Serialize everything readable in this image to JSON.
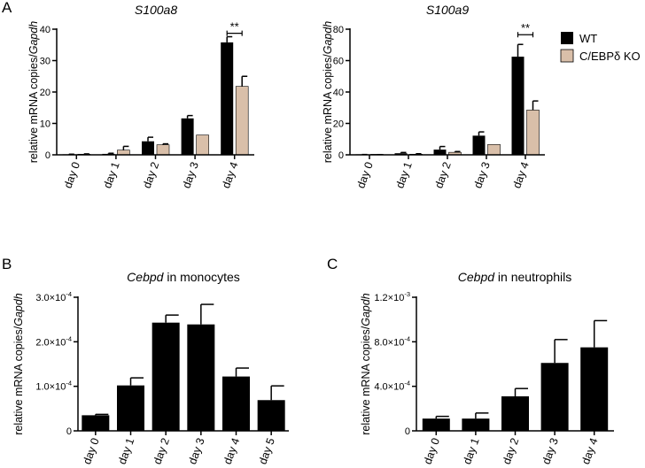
{
  "panel_letters": {
    "A": "A",
    "B": "B",
    "C": "C"
  },
  "colors": {
    "wt": "#000000",
    "ko": "#d9bfa9",
    "axis": "#000000"
  },
  "legend": {
    "wt": "WT",
    "ko": "C/EBPδ KO"
  },
  "chart_data": [
    {
      "id": "s100a8",
      "type": "bar",
      "title": "S100a8",
      "ylabel_prefix": "relative mRNA copies/",
      "ylabel_italic": "Gapdh",
      "categories": [
        "day 0",
        "day 1",
        "day 2",
        "day 3",
        "day 4"
      ],
      "ylim": [
        0,
        40
      ],
      "yticks": [
        0,
        10,
        20,
        30,
        40
      ],
      "ytick_labels": [
        "0",
        "10",
        "20",
        "30",
        "40"
      ],
      "series": [
        {
          "name": "WT",
          "values": [
            0.1,
            0.3,
            4.3,
            11.6,
            35.8
          ],
          "errors": [
            0.1,
            0.2,
            1.3,
            0.9,
            1.8
          ]
        },
        {
          "name": "C/EBPδ KO",
          "values": [
            0.2,
            1.5,
            3.2,
            6.3,
            21.8
          ],
          "errors": [
            0.1,
            1.2,
            0.3,
            0,
            3.2
          ]
        }
      ],
      "significance": {
        "category": "day 4",
        "label": "**",
        "y": 38.7
      }
    },
    {
      "id": "s100a9",
      "type": "bar",
      "title": "S100a9",
      "ylabel_prefix": "relative mRNA copies/",
      "ylabel_italic": "Gapdh",
      "categories": [
        "day 0",
        "day 1",
        "day 2",
        "day 3",
        "day 4"
      ],
      "ylim": [
        0,
        80
      ],
      "yticks": [
        0,
        20,
        40,
        60,
        80
      ],
      "ytick_labels": [
        "0",
        "20",
        "40",
        "60",
        "80"
      ],
      "series": [
        {
          "name": "WT",
          "values": [
            0.1,
            1.0,
            3.3,
            12.2,
            62.5
          ],
          "errors": [
            0.1,
            0.5,
            2.0,
            2.4,
            7.8
          ]
        },
        {
          "name": "C/EBPδ KO",
          "values": [
            0.1,
            0.4,
            1.6,
            6.6,
            28.5
          ],
          "errors": [
            0.05,
            0.3,
            0.5,
            0,
            5.8
          ]
        }
      ],
      "significance": {
        "category": "day 4",
        "label": "**",
        "y": 76.5
      }
    },
    {
      "id": "cebpd_mono",
      "type": "bar",
      "title_italic": "Cebpd",
      "title_rest": " in monocytes",
      "ylabel_prefix": "relative mRNA copies/",
      "ylabel_italic": "Gapdh",
      "categories": [
        "day 0",
        "day 1",
        "day 2",
        "day 3",
        "day 4",
        "day 5"
      ],
      "ylim": [
        0,
        0.0003
      ],
      "yticks": [
        0,
        0.0001,
        0.0002,
        0.0003
      ],
      "ytick_labels": [
        {
          "base": "0",
          "exp": ""
        },
        {
          "base": "1.0×10",
          "exp": "-4"
        },
        {
          "base": "2.0×10",
          "exp": "-4"
        },
        {
          "base": "3.0×10",
          "exp": "-4"
        }
      ],
      "series": [
        {
          "name": "WT",
          "values": [
            3.5e-05,
            0.000102,
            0.000243,
            0.000239,
            0.000122,
            6.9e-05
          ],
          "errors": [
            2e-06,
            1.7e-05,
            1.7e-05,
            4.5e-05,
            1.9e-05,
            3.2e-05
          ]
        }
      ]
    },
    {
      "id": "cebpd_neut",
      "type": "bar",
      "title_italic": "Cebpd",
      "title_rest": " in neutrophils",
      "ylabel_prefix": "relative mRNA copies/",
      "ylabel_italic": "Gapdh",
      "categories": [
        "day 0",
        "day 1",
        "day 2",
        "day 3",
        "day 4"
      ],
      "ylim": [
        0,
        0.0012
      ],
      "yticks": [
        0,
        0.0004,
        0.0008,
        0.0012
      ],
      "ytick_labels": [
        {
          "base": "0",
          "exp": ""
        },
        {
          "base": "4.0×10",
          "exp": "-4"
        },
        {
          "base": "8.0×10",
          "exp": "-4"
        },
        {
          "base": "1.2×10",
          "exp": "-3"
        }
      ],
      "series": [
        {
          "name": "WT",
          "values": [
            0.00011,
            0.00011,
            0.00031,
            0.00061,
            0.00075
          ],
          "errors": [
            2e-05,
            5e-05,
            7e-05,
            0.00021,
            0.00024
          ]
        }
      ]
    }
  ]
}
